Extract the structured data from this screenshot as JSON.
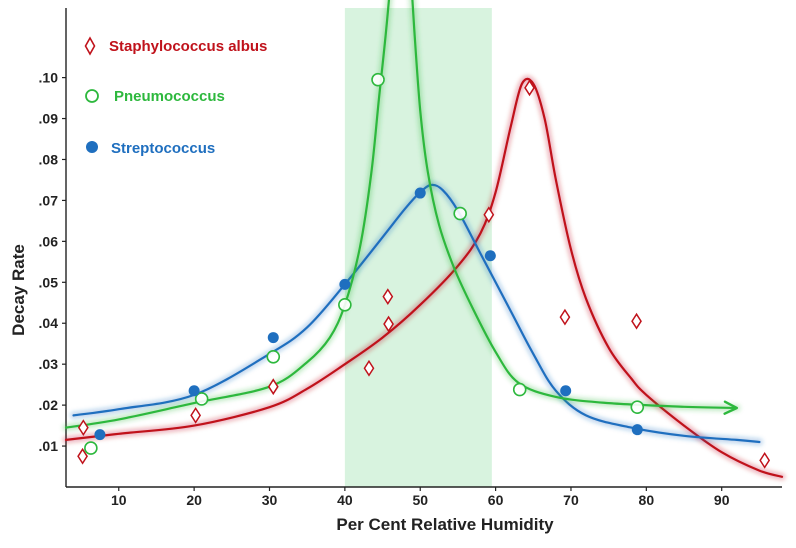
{
  "chart_data": {
    "type": "scatter",
    "title": "",
    "xlabel": "Per Cent Relative Humidity",
    "ylabel": "Decay Rate",
    "xlim": [
      3,
      98
    ],
    "ylim": [
      0.0,
      0.117
    ],
    "x_ticks": [
      10,
      20,
      30,
      40,
      50,
      60,
      70,
      80,
      90
    ],
    "x_tick_labels": [
      "10",
      "20",
      "30",
      "40",
      "50",
      "60",
      "70",
      "80",
      "90"
    ],
    "y_ticks": [
      0.01,
      0.02,
      0.03,
      0.04,
      0.05,
      0.06,
      0.07,
      0.08,
      0.09,
      0.1
    ],
    "y_tick_labels": [
      ".01",
      ".02",
      ".03",
      ".04",
      ".05",
      ".06",
      ".07",
      ".08",
      ".09",
      ".10"
    ],
    "grid": false,
    "legend_position": "top-left",
    "highlight_band": {
      "x_range": [
        40,
        59.5
      ],
      "color": "#d8f3df"
    },
    "series": [
      {
        "name": "Staphylococcus albus",
        "marker": "diamond",
        "color": "#c0121b",
        "points": [
          [
            5.2,
            0.0075
          ],
          [
            5.3,
            0.0145
          ],
          [
            20.2,
            0.0175
          ],
          [
            30.5,
            0.0245
          ],
          [
            43.2,
            0.029
          ],
          [
            45.7,
            0.0465
          ],
          [
            45.8,
            0.0398
          ],
          [
            59.1,
            0.0665
          ],
          [
            64.5,
            0.0975
          ],
          [
            69.2,
            0.0415
          ],
          [
            78.7,
            0.0405
          ],
          [
            95.7,
            0.0065
          ]
        ],
        "curve": [
          [
            3,
            0.0115
          ],
          [
            10,
            0.013
          ],
          [
            20,
            0.015
          ],
          [
            30,
            0.0195
          ],
          [
            35,
            0.024
          ],
          [
            40,
            0.03
          ],
          [
            45,
            0.0365
          ],
          [
            50,
            0.0445
          ],
          [
            55,
            0.054
          ],
          [
            58,
            0.062
          ],
          [
            60,
            0.072
          ],
          [
            62,
            0.088
          ],
          [
            63.5,
            0.0985
          ],
          [
            65,
            0.0985
          ],
          [
            66.5,
            0.09
          ],
          [
            68,
            0.075
          ],
          [
            70,
            0.058
          ],
          [
            72,
            0.046
          ],
          [
            75,
            0.034
          ],
          [
            78,
            0.0265
          ],
          [
            80,
            0.0225
          ],
          [
            85,
            0.015
          ],
          [
            90,
            0.0085
          ],
          [
            95,
            0.004
          ],
          [
            98,
            0.0025
          ]
        ]
      },
      {
        "name": "Pneumococcus",
        "marker": "circle",
        "color": "#2db83d",
        "points": [
          [
            6.3,
            0.0095
          ],
          [
            21,
            0.0215
          ],
          [
            30.5,
            0.0318
          ],
          [
            40,
            0.0445
          ],
          [
            44.4,
            0.0995
          ],
          [
            55.3,
            0.0668
          ],
          [
            63.2,
            0.0238
          ],
          [
            78.8,
            0.0195
          ]
        ],
        "curve_left": [
          [
            3,
            0.0145
          ],
          [
            10,
            0.0165
          ],
          [
            20,
            0.0205
          ],
          [
            30,
            0.0245
          ],
          [
            35,
            0.0305
          ],
          [
            38,
            0.0365
          ],
          [
            40,
            0.0445
          ],
          [
            42,
            0.0585
          ],
          [
            43.5,
            0.0765
          ],
          [
            44.5,
            0.0945
          ],
          [
            45.5,
            0.112
          ],
          [
            46.3,
            0.1285
          ]
        ],
        "curve_right": [
          [
            48.5,
            0.1335
          ],
          [
            49.2,
            0.112
          ],
          [
            50,
            0.092
          ],
          [
            51,
            0.077
          ],
          [
            52.5,
            0.064
          ],
          [
            54.5,
            0.0535
          ],
          [
            57,
            0.0435
          ],
          [
            60,
            0.033
          ],
          [
            63,
            0.0255
          ],
          [
            68,
            0.022
          ],
          [
            75,
            0.0205
          ],
          [
            85,
            0.0196
          ],
          [
            92,
            0.0193
          ]
        ],
        "arrow_up": true,
        "arrow_right": true
      },
      {
        "name": "Streptococcus",
        "marker": "filled-circle",
        "color": "#1f6fbf",
        "points": [
          [
            7.5,
            0.0128
          ],
          [
            20,
            0.0235
          ],
          [
            30.5,
            0.0365
          ],
          [
            40,
            0.0495
          ],
          [
            50,
            0.0718
          ],
          [
            59.3,
            0.0565
          ],
          [
            69.3,
            0.0235
          ],
          [
            78.8,
            0.014
          ]
        ],
        "curve": [
          [
            4,
            0.0175
          ],
          [
            10,
            0.019
          ],
          [
            20,
            0.0225
          ],
          [
            30,
            0.0325
          ],
          [
            35,
            0.039
          ],
          [
            40,
            0.0495
          ],
          [
            45,
            0.061
          ],
          [
            48,
            0.068
          ],
          [
            50,
            0.072
          ],
          [
            51.5,
            0.0738
          ],
          [
            53,
            0.0725
          ],
          [
            55,
            0.0675
          ],
          [
            58,
            0.057
          ],
          [
            62,
            0.043
          ],
          [
            65,
            0.0325
          ],
          [
            68,
            0.0235
          ],
          [
            72,
            0.0175
          ],
          [
            78,
            0.0145
          ],
          [
            85,
            0.0125
          ],
          [
            92,
            0.0115
          ],
          [
            95,
            0.011
          ]
        ]
      }
    ]
  }
}
